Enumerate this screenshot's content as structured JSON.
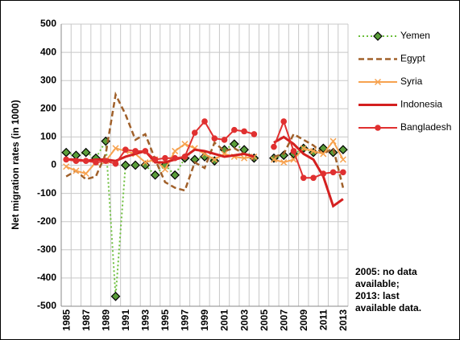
{
  "chart_data": {
    "type": "line",
    "y_label": "Net migration rates (in 1000)",
    "categories": [
      "1985",
      null,
      "1987",
      null,
      "1989",
      null,
      "1991",
      null,
      "1993",
      null,
      "1995",
      null,
      "1997",
      null,
      "1999",
      null,
      "2001",
      null,
      "2003",
      null,
      "2005",
      null,
      "2007",
      null,
      "2009",
      null,
      "2011",
      null,
      "2013"
    ],
    "series": [
      {
        "name": "Yemen",
        "color": "#6cbf3c",
        "line_style": "dotted",
        "marker": "diamond",
        "values": [
          45,
          35,
          45,
          25,
          85,
          -465,
          0,
          0,
          0,
          -35,
          0,
          -35,
          25,
          20,
          30,
          15,
          55,
          75,
          55,
          25,
          null,
          25,
          35,
          40,
          60,
          45,
          60,
          45,
          55
        ]
      },
      {
        "name": "Egypt",
        "color": "#a0602a",
        "line_style": "dashed",
        "marker": "none",
        "values": [
          -40,
          -20,
          -50,
          -40,
          40,
          250,
          180,
          90,
          110,
          20,
          -60,
          -80,
          -90,
          10,
          -10,
          80,
          50,
          60,
          40,
          20,
          null,
          30,
          40,
          110,
          90,
          70,
          40,
          60,
          -80
        ]
      },
      {
        "name": "Syria",
        "color": "#f7a24f",
        "line_style": "solid",
        "marker": "x",
        "values": [
          -5,
          -20,
          -30,
          10,
          15,
          60,
          50,
          40,
          10,
          20,
          -15,
          50,
          75,
          60,
          40,
          20,
          40,
          30,
          25,
          30,
          null,
          20,
          10,
          20,
          60,
          50,
          40,
          85,
          20
        ]
      },
      {
        "name": "Indonesia",
        "color": "#d42020",
        "line_style": "thick",
        "marker": "none",
        "values": [
          20,
          20,
          15,
          20,
          20,
          15,
          30,
          40,
          50,
          10,
          10,
          20,
          30,
          55,
          50,
          40,
          30,
          35,
          40,
          30,
          null,
          80,
          100,
          75,
          40,
          20,
          -40,
          -145,
          -120
        ]
      },
      {
        "name": "Bangladesh",
        "color": "#e03030",
        "line_style": "solid",
        "marker": "circle",
        "values": [
          20,
          15,
          15,
          10,
          15,
          5,
          55,
          50,
          50,
          20,
          25,
          25,
          30,
          115,
          155,
          95,
          90,
          125,
          120,
          110,
          null,
          65,
          155,
          50,
          -45,
          -45,
          -30,
          -25,
          -25
        ]
      }
    ],
    "ylim": [
      -500,
      500
    ],
    "yticks": [
      -500,
      -400,
      -300,
      -200,
      -100,
      0,
      100,
      200,
      300,
      400,
      500
    ],
    "grid": true,
    "legend": "right",
    "annotation": [
      "2005: no data",
      "available;",
      "2013: last",
      "available data."
    ]
  }
}
